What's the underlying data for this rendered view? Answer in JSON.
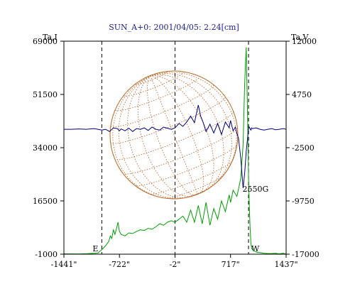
{
  "chart_data": {
    "type": "line",
    "title": "SUN_A+0: 2001/04/05: 2.24[cm]",
    "left_axis_label": "Ta,I",
    "right_axis_label": "Ta,V",
    "x_ticks": [
      {
        "value": -1441,
        "label": "-1441\""
      },
      {
        "value": -722,
        "label": "-722\""
      },
      {
        "value": -2,
        "label": "-2\""
      },
      {
        "value": 717,
        "label": "717\""
      },
      {
        "value": 1437,
        "label": "1437\""
      }
    ],
    "xlim": [
      -1441,
      1437
    ],
    "left_ylim": [
      -1000,
      69000
    ],
    "left_ticks": [
      {
        "value": 69000,
        "label": "69000"
      },
      {
        "value": 51500,
        "label": "51500"
      },
      {
        "value": 34000,
        "label": "34000"
      },
      {
        "value": 16500,
        "label": "16500"
      },
      {
        "value": -1000,
        "label": "-1000"
      }
    ],
    "right_ylim": [
      -17000,
      12000
    ],
    "right_ticks": [
      {
        "value": 12000,
        "label": "12000"
      },
      {
        "value": 4750,
        "label": "4750"
      },
      {
        "value": -2500,
        "label": "-2500"
      },
      {
        "value": -9750,
        "label": "-9750"
      },
      {
        "value": -17000,
        "label": "-17000"
      }
    ],
    "markers": [
      {
        "x": -950,
        "label": "E"
      },
      {
        "x": -2,
        "label": ""
      },
      {
        "x": 950,
        "label": "W"
      }
    ],
    "annotation": {
      "text": "2550G",
      "x": 1000,
      "y_left": 19500
    },
    "series": [
      {
        "color": "#00a000",
        "axis": "left",
        "x": [
          -1441,
          -1350,
          -1250,
          -1150,
          -1050,
          -1000,
          -950,
          -900,
          -860,
          -840,
          -820,
          -800,
          -780,
          -760,
          -740,
          -722,
          -700,
          -650,
          -600,
          -550,
          -500,
          -450,
          -400,
          -350,
          -300,
          -250,
          -200,
          -150,
          -100,
          -50,
          -2,
          50,
          100,
          150,
          200,
          250,
          300,
          350,
          400,
          450,
          500,
          550,
          600,
          650,
          700,
          717,
          750,
          800,
          850,
          880,
          900,
          920,
          940,
          950,
          960,
          970,
          980,
          990,
          1000,
          1020,
          1050,
          1100,
          1150,
          1200,
          1250,
          1300,
          1350,
          1400,
          1437
        ],
        "values": [
          -900,
          -900,
          -950,
          -850,
          -700,
          -600,
          500,
          1800,
          3200,
          5000,
          4200,
          7000,
          5500,
          7500,
          9500,
          6500,
          5500,
          5000,
          6000,
          5800,
          6500,
          7000,
          6800,
          7500,
          7200,
          8000,
          9000,
          8500,
          9500,
          10000,
          9500,
          10500,
          11500,
          9500,
          13500,
          9500,
          15000,
          9000,
          16000,
          8500,
          14000,
          10500,
          16500,
          13000,
          18500,
          16000,
          20000,
          18000,
          24000,
          35000,
          55000,
          67000,
          42000,
          25000,
          15000,
          8000,
          3000,
          1000,
          500,
          200,
          -300,
          -500,
          -700,
          -800,
          -800,
          -700,
          -900,
          -700,
          -1000
        ]
      },
      {
        "color": "#00007a",
        "axis": "right",
        "x": [
          -1441,
          -1350,
          -1250,
          -1150,
          -1050,
          -1000,
          -950,
          -900,
          -850,
          -800,
          -750,
          -722,
          -700,
          -650,
          -600,
          -550,
          -500,
          -450,
          -400,
          -350,
          -300,
          -250,
          -200,
          -150,
          -100,
          -50,
          -2,
          50,
          100,
          150,
          200,
          250,
          300,
          330,
          360,
          400,
          450,
          500,
          550,
          600,
          650,
          700,
          717,
          750,
          780,
          800,
          820,
          850,
          880,
          900,
          920,
          940,
          950,
          960,
          970,
          980,
          990,
          1000,
          1050,
          1100,
          1150,
          1200,
          1250,
          1300,
          1350,
          1400,
          1437
        ],
        "values": [
          0,
          0,
          50,
          0,
          100,
          0,
          -100,
          0,
          -300,
          200,
          100,
          -200,
          50,
          -200,
          150,
          -300,
          100,
          0,
          200,
          -150,
          300,
          0,
          -100,
          300,
          150,
          0,
          200,
          800,
          400,
          1000,
          1800,
          900,
          3300,
          1800,
          1000,
          -300,
          700,
          -500,
          800,
          -700,
          1000,
          200,
          1200,
          -200,
          300,
          -600,
          -1200,
          -4000,
          -8000,
          -6000,
          -3000,
          -1000,
          100,
          300,
          100,
          -100,
          200,
          100,
          200,
          0,
          -100,
          0,
          100,
          -50,
          0,
          100,
          0
        ]
      }
    ]
  }
}
